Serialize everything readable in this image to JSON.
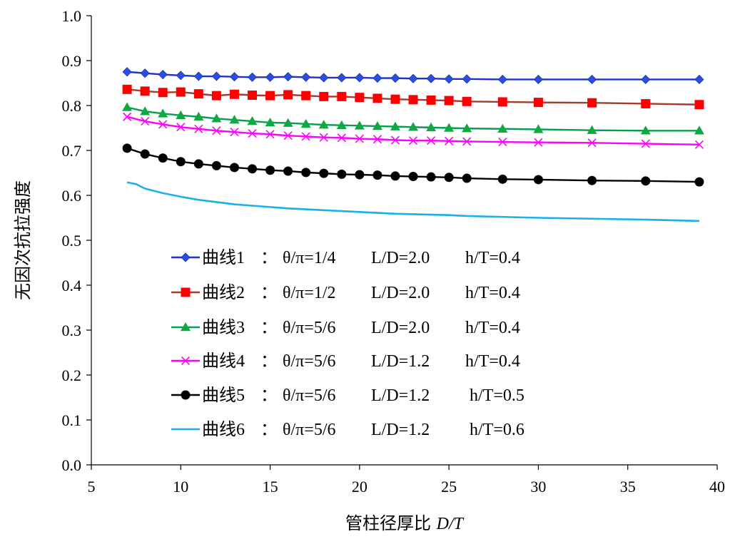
{
  "chart_data": {
    "type": "line",
    "title": "",
    "xlabel": "管柱径厚比",
    "xlabel_var": "D/T",
    "ylabel": "无因次抗拉强度",
    "xlim": [
      5,
      40
    ],
    "ylim": [
      0,
      1.0
    ],
    "xticks": [
      "5",
      "10",
      "15",
      "20",
      "25",
      "30",
      "35",
      "40"
    ],
    "yticks": [
      "0.0",
      "0.1",
      "0.2",
      "0.3",
      "0.4",
      "0.5",
      "0.6",
      "0.7",
      "0.8",
      "0.9",
      "1.0"
    ],
    "grid": false,
    "legend_position": "center-left",
    "series": [
      {
        "name": "曲线1",
        "params": [
          "θ/π=1/4",
          "L/D=2.0",
          "h/T=0.4"
        ],
        "line_color": "#1f2fd0",
        "marker": "diamond",
        "marker_color": "#2a4fe0",
        "x": [
          7,
          8,
          9,
          10,
          11,
          12,
          13,
          14,
          15,
          16,
          17,
          18,
          19,
          20,
          21,
          22,
          23,
          24,
          25,
          26,
          28,
          30,
          33,
          36,
          39
        ],
        "y": [
          0.875,
          0.872,
          0.869,
          0.867,
          0.865,
          0.865,
          0.864,
          0.863,
          0.863,
          0.864,
          0.863,
          0.862,
          0.862,
          0.862,
          0.861,
          0.861,
          0.86,
          0.86,
          0.859,
          0.859,
          0.858,
          0.858,
          0.858,
          0.858,
          0.858
        ]
      },
      {
        "name": "曲线2",
        "params": [
          "θ/π=1/2",
          "L/D=2.0",
          "h/T=0.4"
        ],
        "line_color": "#a83a2a",
        "marker": "square",
        "marker_color": "#ff0000",
        "x": [
          7,
          8,
          9,
          10,
          11,
          12,
          13,
          14,
          15,
          16,
          17,
          18,
          19,
          20,
          21,
          22,
          23,
          24,
          25,
          26,
          28,
          30,
          33,
          36,
          39
        ],
        "y": [
          0.836,
          0.832,
          0.829,
          0.83,
          0.826,
          0.822,
          0.825,
          0.823,
          0.822,
          0.824,
          0.822,
          0.82,
          0.82,
          0.818,
          0.816,
          0.814,
          0.813,
          0.812,
          0.811,
          0.809,
          0.808,
          0.807,
          0.806,
          0.804,
          0.802
        ]
      },
      {
        "name": "曲线3",
        "params": [
          "θ/π=5/6",
          "L/D=2.0",
          "h/T=0.4"
        ],
        "line_color": "#00a050",
        "marker": "triangle",
        "marker_color": "#10a840",
        "x": [
          7,
          8,
          9,
          10,
          11,
          12,
          13,
          14,
          15,
          16,
          17,
          18,
          19,
          20,
          21,
          22,
          23,
          24,
          25,
          26,
          28,
          30,
          33,
          36,
          39
        ],
        "y": [
          0.796,
          0.787,
          0.782,
          0.778,
          0.775,
          0.771,
          0.768,
          0.765,
          0.762,
          0.761,
          0.759,
          0.757,
          0.756,
          0.755,
          0.754,
          0.753,
          0.752,
          0.751,
          0.75,
          0.749,
          0.748,
          0.747,
          0.745,
          0.744,
          0.744
        ]
      },
      {
        "name": "曲线4",
        "params": [
          "θ/π=5/6",
          "L/D=1.2",
          "h/T=0.4"
        ],
        "line_color": "#ff00ff",
        "marker": "x",
        "marker_color": "#ff00ff",
        "x": [
          7,
          8,
          9,
          10,
          11,
          12,
          13,
          14,
          15,
          16,
          17,
          18,
          19,
          20,
          21,
          22,
          23,
          24,
          25,
          26,
          28,
          30,
          33,
          36,
          39
        ],
        "y": [
          0.775,
          0.765,
          0.758,
          0.752,
          0.748,
          0.744,
          0.741,
          0.738,
          0.736,
          0.733,
          0.731,
          0.729,
          0.728,
          0.726,
          0.725,
          0.723,
          0.722,
          0.722,
          0.721,
          0.72,
          0.719,
          0.718,
          0.717,
          0.715,
          0.713
        ]
      },
      {
        "name": "曲线5",
        "params": [
          "θ/π=5/6",
          "L/D=1.2",
          "h/T=0.5"
        ],
        "line_color": "#000000",
        "marker": "circle",
        "marker_color": "#000000",
        "x": [
          7,
          8,
          9,
          10,
          11,
          12,
          13,
          14,
          15,
          16,
          17,
          18,
          19,
          20,
          21,
          22,
          23,
          24,
          25,
          26,
          28,
          30,
          33,
          36,
          39
        ],
        "y": [
          0.705,
          0.692,
          0.683,
          0.675,
          0.67,
          0.666,
          0.662,
          0.659,
          0.656,
          0.654,
          0.651,
          0.649,
          0.647,
          0.646,
          0.645,
          0.643,
          0.642,
          0.641,
          0.64,
          0.638,
          0.636,
          0.635,
          0.633,
          0.632,
          0.63
        ]
      },
      {
        "name": "曲线6",
        "params": [
          "θ/π=5/6",
          "L/D=1.2",
          "h/T=0.6"
        ],
        "line_color": "#1ab0ea",
        "marker": "none",
        "marker_color": "#1ab0ea",
        "x": [
          7,
          7.5,
          8,
          9,
          10,
          11,
          12,
          13,
          14,
          15,
          16,
          17,
          18,
          19,
          20,
          21,
          22,
          23,
          24,
          25,
          26,
          28,
          30,
          33,
          36,
          39
        ],
        "y": [
          0.629,
          0.625,
          0.615,
          0.605,
          0.597,
          0.59,
          0.585,
          0.58,
          0.577,
          0.574,
          0.571,
          0.569,
          0.567,
          0.565,
          0.563,
          0.561,
          0.559,
          0.558,
          0.557,
          0.556,
          0.554,
          0.552,
          0.55,
          0.548,
          0.546,
          0.543
        ]
      }
    ]
  }
}
